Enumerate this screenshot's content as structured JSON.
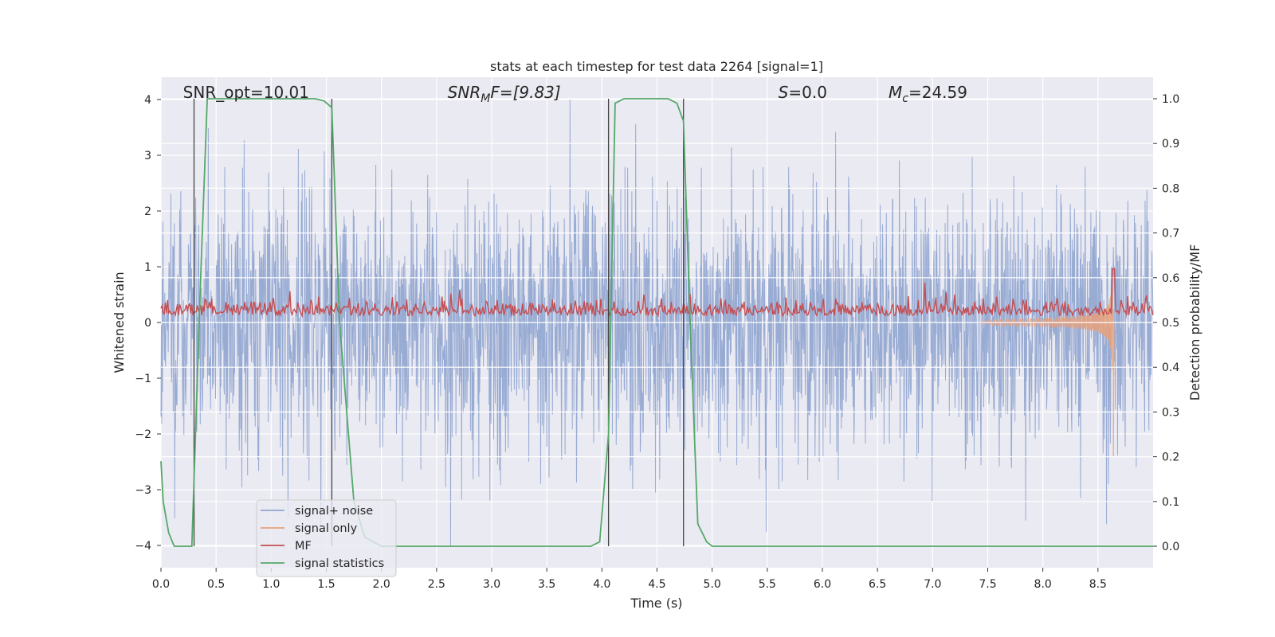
{
  "chart_data": {
    "type": "line",
    "title": "stats at each timestep for test data 2264 [signal=1]",
    "xlabel": "Time (s)",
    "ylabel_left": "Whitened strain",
    "ylabel_right": "Detection probability/MF",
    "xlim": [
      0.0,
      9.0
    ],
    "ylim_left": [
      -4.4,
      4.4
    ],
    "ylim_right": [
      -0.048,
      1.048
    ],
    "grid": true,
    "legend_location": "lower-left",
    "x_ticks": [
      "0.0",
      "0.5",
      "1.0",
      "1.5",
      "2.0",
      "2.5",
      "3.0",
      "3.5",
      "4.0",
      "4.5",
      "5.0",
      "5.5",
      "6.0",
      "6.5",
      "7.0",
      "7.5",
      "8.0",
      "8.5"
    ],
    "y_ticks_left": [
      "4",
      "3",
      "2",
      "1",
      "0",
      "−1",
      "−2",
      "−3",
      "−4"
    ],
    "y_ticks_right": [
      "1.0",
      "0.9",
      "0.8",
      "0.7",
      "0.6",
      "0.5",
      "0.4",
      "0.3",
      "0.2",
      "0.1",
      "0.0"
    ],
    "annotations": [
      {
        "name": "snr-opt",
        "text": "SNR_opt=10.01",
        "x": 0.2
      },
      {
        "name": "snr-mf",
        "prefix": "SNR",
        "sub": "M",
        "suffix": "F=[9.83]",
        "x": 2.6
      },
      {
        "name": "s-stat",
        "prefix": "S",
        "suffix": "=0.0",
        "x": 5.6
      },
      {
        "name": "chirp-mass",
        "prefix": "M",
        "sub": "c",
        "suffix": "=24.59",
        "x": 6.6
      }
    ],
    "detection_boundaries_s": [
      0.3,
      1.55,
      4.06,
      4.74
    ],
    "series": [
      {
        "name": "signal+ noise",
        "color": "#8fa4cf",
        "kind": "noise",
        "amplitude_range": [
          -4.0,
          4.0
        ]
      },
      {
        "name": "signal only",
        "color": "#e8a07a",
        "kind": "chirp",
        "merger_time": 8.64,
        "peak_amplitude": 2.4
      },
      {
        "name": "MF",
        "color": "#c44e52",
        "kind": "mf",
        "baseline": 0.52,
        "peak": 0.62
      },
      {
        "name": "signal statistics",
        "color": "#55a868",
        "kind": "step",
        "x": [
          0.0,
          0.02,
          0.07,
          0.12,
          0.2,
          0.28,
          0.3,
          0.36,
          0.42,
          0.5,
          1.0,
          1.4,
          1.48,
          1.55,
          1.62,
          1.75,
          1.85,
          2.0,
          3.9,
          3.98,
          4.06,
          4.12,
          4.2,
          4.3,
          4.6,
          4.68,
          4.74,
          4.8,
          4.87,
          4.95,
          5.0,
          9.0
        ],
        "y": [
          0.19,
          0.1,
          0.03,
          0.0,
          0.0,
          0.0,
          0.15,
          0.6,
          1.0,
          1.0,
          1.0,
          1.0,
          0.995,
          0.98,
          0.5,
          0.1,
          0.02,
          0.0,
          0.0,
          0.01,
          0.25,
          0.99,
          1.0,
          1.0,
          1.0,
          0.99,
          0.95,
          0.5,
          0.05,
          0.01,
          0.0,
          0.0
        ]
      }
    ]
  }
}
